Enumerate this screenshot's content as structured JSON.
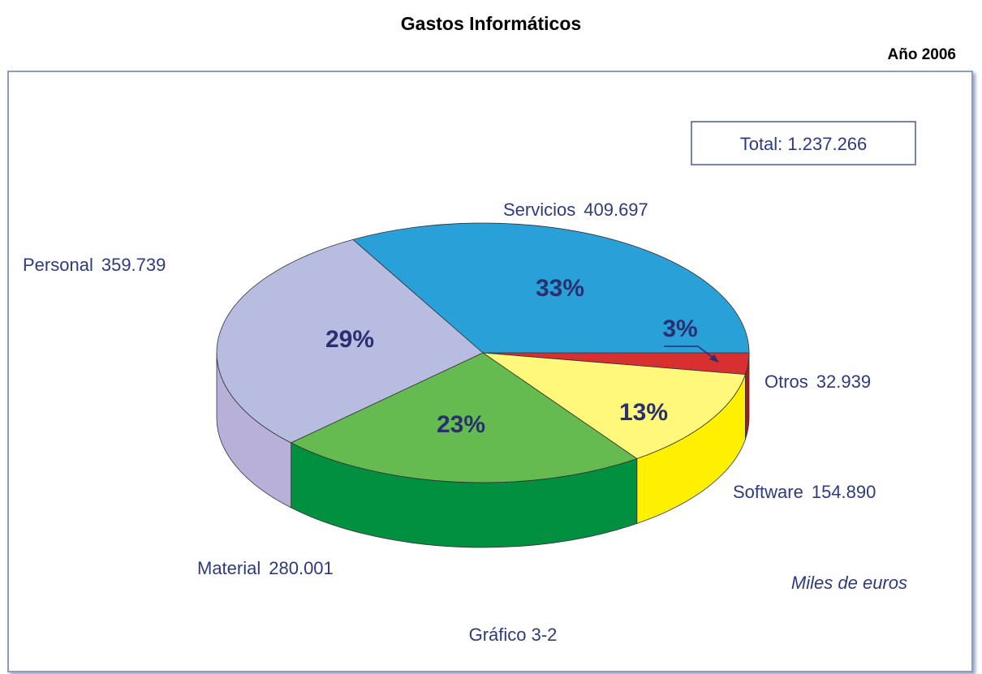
{
  "chart_data": {
    "type": "pie3d",
    "title": "Gastos Informáticos",
    "subtitle": "Año 2006",
    "total": {
      "value": 1237266,
      "label": "Total: 1.237.266"
    },
    "categories": [
      "Otros",
      "Software",
      "Material",
      "Personal",
      "Servicios"
    ],
    "values": [
      32939,
      154890,
      280001,
      359739,
      409697
    ],
    "value_labels": [
      "32.939",
      "154.890",
      "280.001",
      "359.739",
      "409.697"
    ],
    "percentages": [
      {
        "value": 3,
        "label": "3%"
      },
      {
        "value": 13,
        "label": "13%"
      },
      {
        "value": 23,
        "label": "23%"
      },
      {
        "value": 29,
        "label": "29%"
      },
      {
        "value": 33,
        "label": "33%"
      }
    ],
    "colors": [
      "#d83030",
      "#fff87a",
      "#66bb50",
      "#b8bce0",
      "#2aa0d8"
    ],
    "side_colors": [
      "#b01818",
      "#fff000",
      "#009040",
      "#b8b0d8",
      "#1f86b8"
    ],
    "units_note": "Miles de euros",
    "caption": "Gráfico 3-2"
  }
}
